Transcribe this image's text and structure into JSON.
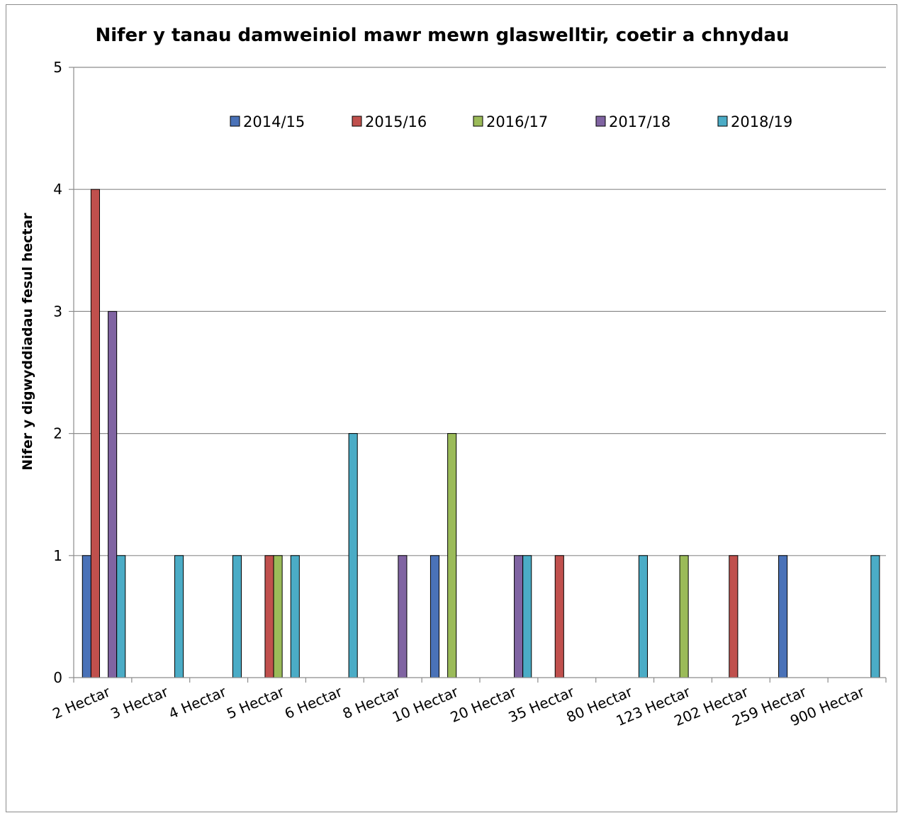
{
  "chart_data": {
    "type": "bar",
    "title": "Nifer y tanau damweiniol mawr mewn glaswelltir, coetir a chnydau",
    "xlabel": "",
    "ylabel": "Nifer y digwyddiadau fesul hectar",
    "ylim": [
      0,
      5
    ],
    "yticks": [
      "0",
      "1",
      "2",
      "3",
      "4",
      "5"
    ],
    "grid": true,
    "legend_position": "top",
    "categories": [
      "2 Hectar",
      "3 Hectar",
      "4 Hectar",
      "5 Hectar",
      "6 Hectar",
      "8 Hectar",
      "10 Hectar",
      "20 Hectar",
      "35 Hectar",
      "80 Hectar",
      "123 Hectar",
      "202 Hectar",
      "259 Hectar",
      "900 Hectar"
    ],
    "series": [
      {
        "name": "2014/15",
        "color": "#4a72b8",
        "values": [
          1,
          0,
          0,
          0,
          0,
          0,
          1,
          0,
          0,
          0,
          0,
          0,
          1,
          0
        ]
      },
      {
        "name": "2015/16",
        "color": "#c0504d",
        "values": [
          4,
          0,
          0,
          1,
          0,
          0,
          0,
          0,
          1,
          0,
          0,
          1,
          0,
          0
        ]
      },
      {
        "name": "2016/17",
        "color": "#9bbb59",
        "values": [
          0,
          0,
          0,
          1,
          0,
          0,
          2,
          0,
          0,
          0,
          1,
          0,
          0,
          0
        ]
      },
      {
        "name": "2017/18",
        "color": "#8064a2",
        "values": [
          3,
          0,
          0,
          0,
          0,
          1,
          0,
          1,
          0,
          0,
          0,
          0,
          0,
          0
        ]
      },
      {
        "name": "2018/19",
        "color": "#4bacc6",
        "values": [
          1,
          1,
          1,
          1,
          2,
          0,
          0,
          1,
          0,
          1,
          0,
          0,
          0,
          1
        ]
      }
    ]
  }
}
